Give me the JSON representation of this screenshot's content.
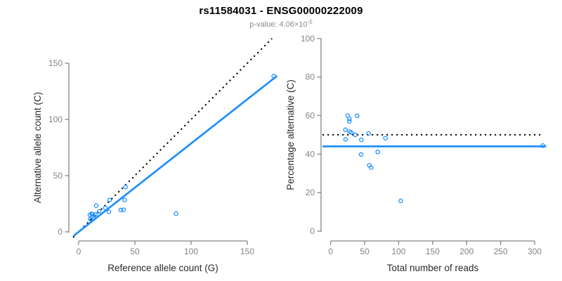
{
  "header": {
    "title": "rs11584031 - ENSG00000222009",
    "subtitle_prefix": "p-value: 4.06×10",
    "subtitle_exponent": "-5"
  },
  "colors": {
    "point_blue": "#1E90FF",
    "line_blue": "#1E90FF",
    "dashed_black": "#000000",
    "axis_gray": "#848484",
    "label_dark": "#2b2b2b",
    "subtitle_gray": "#8a8a8a"
  },
  "chart_data": [
    {
      "type": "scatter",
      "name": "allele-counts",
      "xlabel": "Reference allele count (G)",
      "ylabel": "Alternative allele count (C)",
      "xticks": [
        0,
        50,
        100,
        150
      ],
      "yticks": [
        0,
        50,
        100,
        150
      ],
      "xlim": [
        -7,
        181
      ],
      "ylim": [
        -8,
        172
      ],
      "grid": false,
      "points": [
        [
          10,
          15
        ],
        [
          11.5,
          16
        ],
        [
          12,
          15.7
        ],
        [
          15.6,
          23.4
        ],
        [
          10.3,
          11.4
        ],
        [
          13.5,
          14.4
        ],
        [
          14.8,
          15.5
        ],
        [
          18.1,
          18.1
        ],
        [
          11.5,
          10.5
        ],
        [
          23.7,
          21.3
        ],
        [
          27.5,
          28.3
        ],
        [
          41.7,
          39.9
        ],
        [
          26.9,
          17.8
        ],
        [
          40.8,
          28.4
        ],
        [
          37.4,
          19.4
        ],
        [
          39.9,
          19.6
        ],
        [
          86.7,
          16.2
        ],
        [
          173.5,
          138.5
        ]
      ],
      "lines": [
        {
          "kind": "abline",
          "slope": 1,
          "intercept": 0,
          "style": "dotted",
          "color_key": "dashed_black"
        },
        {
          "kind": "abline",
          "slope": 0.786,
          "intercept": 0,
          "style": "solid",
          "color_key": "line_blue"
        }
      ]
    },
    {
      "type": "scatter",
      "name": "percentage-alternative",
      "xlabel": "Total number of reads",
      "ylabel": "Percentage alternative (C)",
      "xticks": [
        0,
        50,
        100,
        150,
        200,
        250,
        300
      ],
      "yticks": [
        0,
        20,
        40,
        60,
        80,
        100
      ],
      "xlim": [
        -12.5,
        324.5
      ],
      "ylim": [
        -4,
        104
      ],
      "grid": false,
      "points": [
        [
          25,
          60
        ],
        [
          27.5,
          58.3
        ],
        [
          27.5,
          57
        ],
        [
          38.8,
          59.9
        ],
        [
          21.7,
          52.6
        ],
        [
          27.9,
          51.6
        ],
        [
          30.3,
          51.2
        ],
        [
          36.2,
          50
        ],
        [
          22,
          47.6
        ],
        [
          45,
          47.4
        ],
        [
          55.8,
          50.7
        ],
        [
          80.6,
          48.3
        ],
        [
          44.7,
          39.8
        ],
        [
          69.2,
          41.1
        ],
        [
          56.8,
          34.2
        ],
        [
          59.5,
          33
        ],
        [
          103,
          15.7
        ],
        [
          312,
          44.4
        ]
      ],
      "lines": [
        {
          "kind": "hline",
          "y": 50,
          "style": "dotted",
          "color_key": "dashed_black"
        },
        {
          "kind": "hline",
          "y": 44,
          "style": "solid",
          "color_key": "line_blue"
        }
      ]
    }
  ]
}
